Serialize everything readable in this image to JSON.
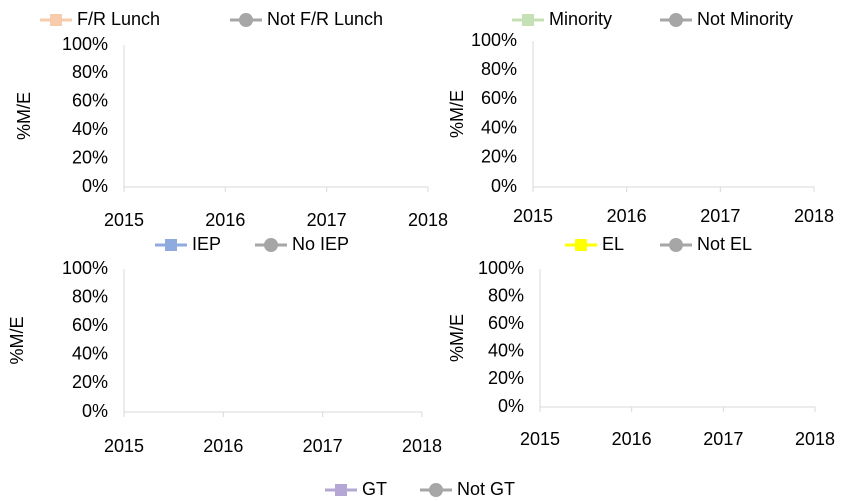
{
  "chart_data": [
    {
      "type": "line",
      "y_label": "%M/E",
      "xlim": [
        2015,
        2018
      ],
      "xticks": [
        2015,
        2016,
        2017,
        2018
      ],
      "ylim": [
        0,
        100
      ],
      "yticks": [
        {
          "value": 0,
          "label": "0%"
        },
        {
          "value": 20,
          "label": "20%"
        },
        {
          "value": 40,
          "label": "40%"
        },
        {
          "value": 60,
          "label": "60%"
        },
        {
          "value": 80,
          "label": "80%"
        },
        {
          "value": 100,
          "label": "100%"
        }
      ],
      "grid": false,
      "series": [
        {
          "name": "F/R Lunch",
          "color": "#f8cbad",
          "marker": "square",
          "x": [],
          "values": []
        },
        {
          "name": "Not F/R Lunch",
          "color": "#a6a6a6",
          "marker": "circle",
          "x": [],
          "values": []
        }
      ]
    },
    {
      "type": "line",
      "y_label": "%M/E",
      "xlim": [
        2015,
        2018
      ],
      "xticks": [
        2015,
        2016,
        2017,
        2018
      ],
      "ylim": [
        0,
        100
      ],
      "yticks": [
        {
          "value": 0,
          "label": "0%"
        },
        {
          "value": 20,
          "label": "20%"
        },
        {
          "value": 40,
          "label": "40%"
        },
        {
          "value": 60,
          "label": "60%"
        },
        {
          "value": 80,
          "label": "80%"
        },
        {
          "value": 100,
          "label": "100%"
        }
      ],
      "grid": false,
      "series": [
        {
          "name": "Minority",
          "color": "#c5e0b4",
          "marker": "square",
          "x": [],
          "values": []
        },
        {
          "name": "Not Minority",
          "color": "#a6a6a6",
          "marker": "circle",
          "x": [],
          "values": []
        }
      ]
    },
    {
      "type": "line",
      "y_label": "%M/E",
      "xlim": [
        2015,
        2018
      ],
      "xticks": [
        2015,
        2016,
        2017,
        2018
      ],
      "ylim": [
        0,
        100
      ],
      "yticks": [
        {
          "value": 0,
          "label": "0%"
        },
        {
          "value": 20,
          "label": "20%"
        },
        {
          "value": 40,
          "label": "40%"
        },
        {
          "value": 60,
          "label": "60%"
        },
        {
          "value": 80,
          "label": "80%"
        },
        {
          "value": 100,
          "label": "100%"
        }
      ],
      "grid": false,
      "series": [
        {
          "name": "IEP",
          "color": "#8faadc",
          "marker": "square",
          "x": [],
          "values": []
        },
        {
          "name": "No IEP",
          "color": "#a6a6a6",
          "marker": "circle",
          "x": [],
          "values": []
        }
      ]
    },
    {
      "type": "line",
      "y_label": "%M/E",
      "xlim": [
        2015,
        2018
      ],
      "xticks": [
        2015,
        2016,
        2017,
        2018
      ],
      "ylim": [
        0,
        100
      ],
      "yticks": [
        {
          "value": 0,
          "label": "0%"
        },
        {
          "value": 20,
          "label": "20%"
        },
        {
          "value": 40,
          "label": "40%"
        },
        {
          "value": 60,
          "label": "60%"
        },
        {
          "value": 80,
          "label": "80%"
        },
        {
          "value": 100,
          "label": "100%"
        }
      ],
      "grid": false,
      "series": [
        {
          "name": "EL",
          "color": "#ffff00",
          "marker": "square",
          "x": [],
          "values": []
        },
        {
          "name": "Not EL",
          "color": "#a6a6a6",
          "marker": "circle",
          "x": [],
          "values": []
        }
      ]
    },
    {
      "type": "line",
      "series": [
        {
          "name": "GT",
          "color": "#b4a7d6",
          "marker": "square",
          "x": [],
          "values": []
        },
        {
          "name": "Not GT",
          "color": "#a6a6a6",
          "marker": "circle",
          "x": [],
          "values": []
        }
      ]
    }
  ]
}
